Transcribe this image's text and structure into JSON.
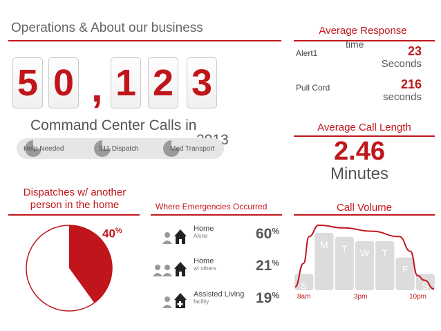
{
  "header": {
    "title": "Operations & About our business"
  },
  "calls": {
    "digits": [
      "5",
      "0",
      "1",
      "2",
      "3"
    ],
    "separator": ",",
    "caption_line1": "Command Center Calls in",
    "caption_line2": "2013",
    "categories": [
      "Help Needed",
      "911 Dispatch",
      "Med Transport"
    ]
  },
  "response": {
    "title_line1": "Average Response",
    "title_line2": "time",
    "rows": [
      {
        "label": "Alert1",
        "value": "23",
        "unit": "Seconds"
      },
      {
        "label": "Pull Cord",
        "value": "216",
        "unit": "seconds"
      }
    ]
  },
  "call_length": {
    "title": "Average Call Length",
    "value": "2.46",
    "unit": "Minutes"
  },
  "dispatch": {
    "title_line1": "Dispatches w/ another",
    "title_line2": "person in the home",
    "percent": "40",
    "percent_sign": "%"
  },
  "emergencies": {
    "title": "Where Emergencies Occurred",
    "items": [
      {
        "title": "Home",
        "sub": "Alone",
        "percent": "60",
        "sign": "%"
      },
      {
        "title": "Home",
        "sub": "w/ others",
        "percent": "21",
        "sign": "%"
      },
      {
        "title": "Assisted Living",
        "sub": "facility",
        "percent": "19",
        "sign": "%"
      }
    ]
  },
  "volume": {
    "title": "Call Volume",
    "day_labels": [
      "S",
      "M",
      "T",
      "W",
      "T",
      "F",
      "S"
    ],
    "time_labels": [
      "8am",
      "3pm",
      "10pm"
    ]
  },
  "colors": {
    "accent": "#c0161b",
    "gray": "#555555",
    "light": "#e0e0e0"
  },
  "chart_data": [
    {
      "type": "pie",
      "title": "Dispatches w/ another person in the home",
      "slices": [
        {
          "label": "Dispatches w/ another person in the home",
          "value": 40
        },
        {
          "label": "",
          "value": 60
        }
      ]
    },
    {
      "type": "bar",
      "title": "Where Emergencies Occurred",
      "categories": [
        "Home Alone",
        "Home w/ others",
        "Assisted Living facility"
      ],
      "values": [
        60,
        21,
        19
      ]
    },
    {
      "type": "area",
      "title": "Call Volume",
      "categories": [
        "S",
        "M",
        "T",
        "W",
        "T",
        "F",
        "S"
      ],
      "values": [
        2,
        7,
        6.5,
        6,
        6,
        4,
        2
      ],
      "x_ticks": [
        "8am",
        "3pm",
        "10pm"
      ],
      "curve": [
        {
          "t": 0.0,
          "v": 0.05
        },
        {
          "t": 0.06,
          "v": 0.4
        },
        {
          "t": 0.1,
          "v": 0.8
        },
        {
          "t": 0.17,
          "v": 0.97
        },
        {
          "t": 0.35,
          "v": 0.93
        },
        {
          "t": 0.55,
          "v": 0.88
        },
        {
          "t": 0.75,
          "v": 0.8
        },
        {
          "t": 0.83,
          "v": 0.58
        },
        {
          "t": 0.88,
          "v": 0.22
        },
        {
          "t": 0.93,
          "v": 0.15
        },
        {
          "t": 1.0,
          "v": 0.02
        }
      ]
    }
  ]
}
